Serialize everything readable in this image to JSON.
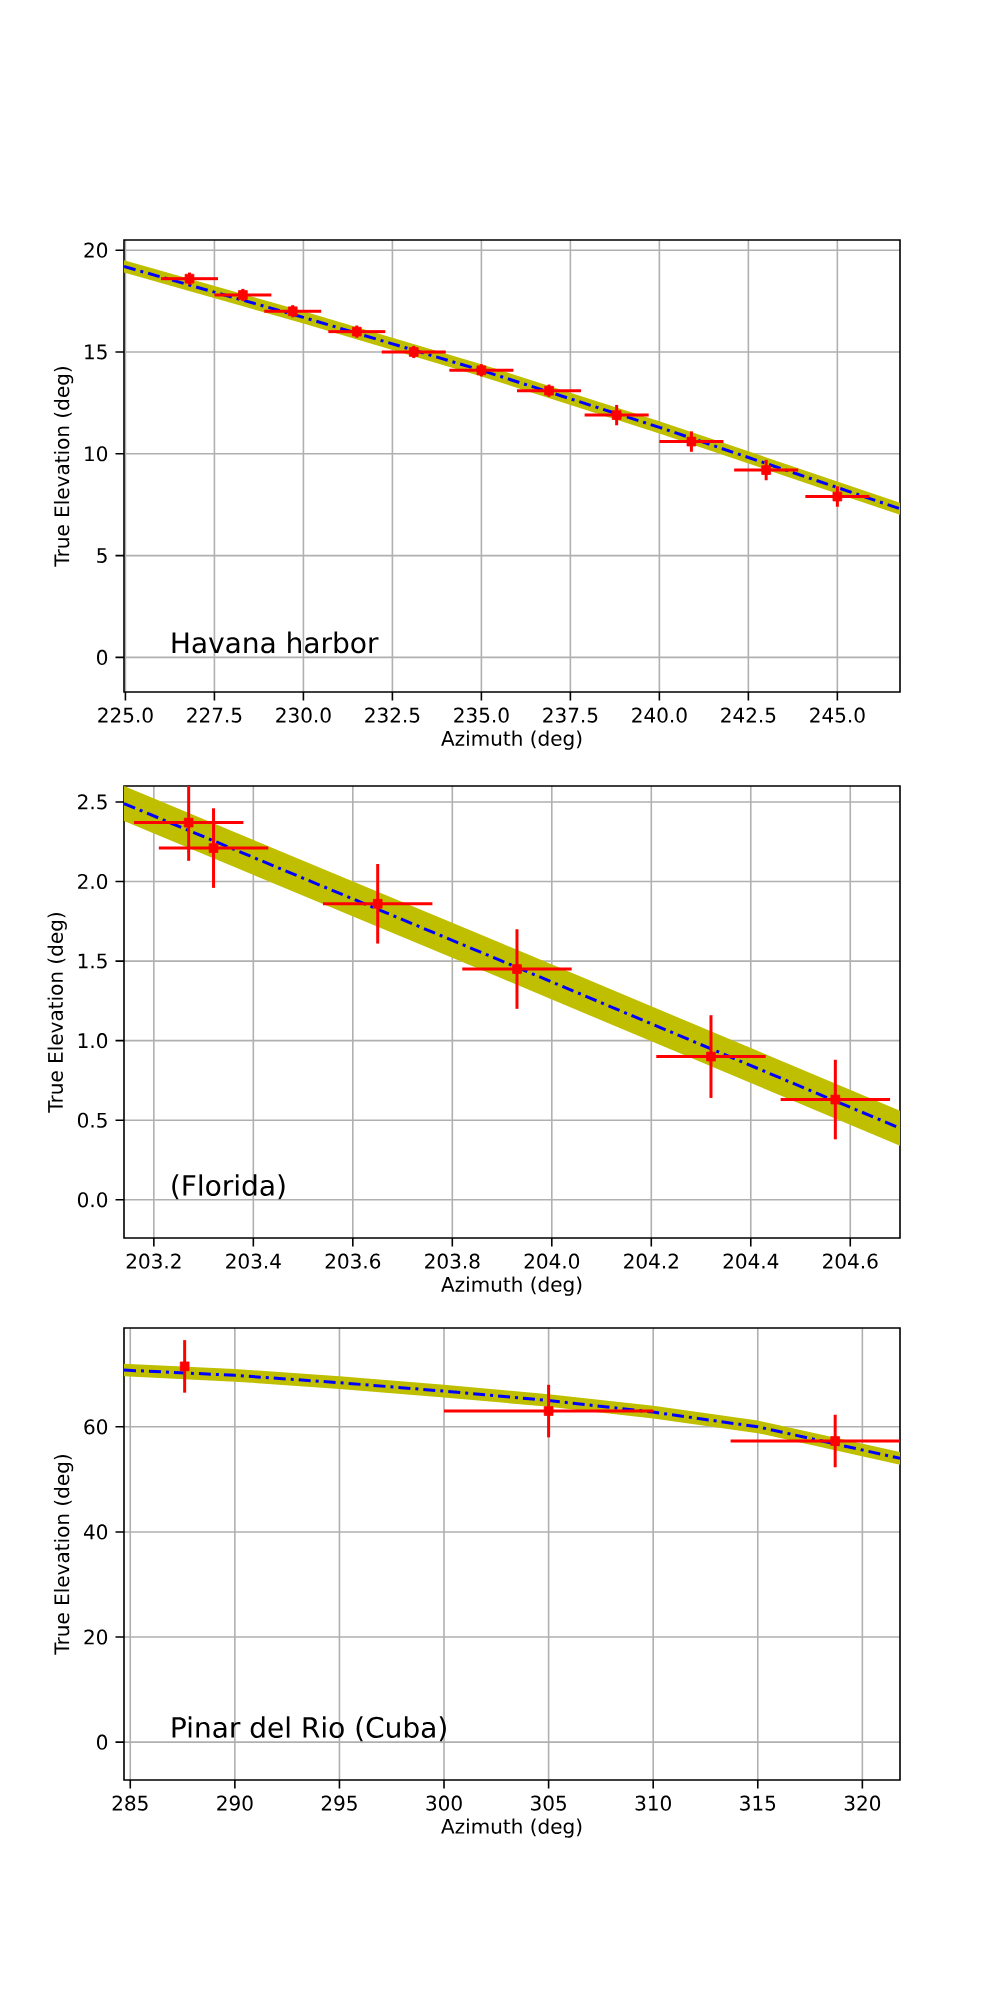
{
  "chart_data": [
    {
      "type": "scatter",
      "xlabel": "Azimuth (deg)",
      "ylabel": "True Elevation (deg)",
      "xlim": [
        224.96,
        246.76
      ],
      "ylim": [
        -1.7,
        20.5
      ],
      "xticks": [
        {
          "value": 225,
          "label": "225.0"
        },
        227.5,
        {
          "value": 230,
          "label": "230.0"
        },
        232.5,
        {
          "value": 235,
          "label": "235.0"
        },
        237.5,
        {
          "value": 240,
          "label": "240.0"
        },
        242.5,
        {
          "value": 245,
          "label": "245.0"
        }
      ],
      "yticks": [
        0,
        5,
        10,
        15,
        20
      ],
      "grid": true,
      "annotations": [
        "Havana harbor"
      ],
      "series": [
        {
          "type": "line",
          "color": "#0000ff",
          "line_style": "dashed",
          "x": [
            224.96,
            230,
            235,
            240,
            246.76
          ],
          "values": [
            19.2,
            16.7,
            14.1,
            11.3,
            7.3
          ],
          "lower": [
            18.9,
            16.4,
            13.8,
            11.0,
            7.0
          ],
          "upper": [
            19.5,
            17.0,
            14.4,
            11.6,
            7.6
          ]
        },
        {
          "marker": "square",
          "color": "#ff0000",
          "x": [
            226.8,
            228.3,
            229.7,
            231.5,
            233.1,
            235.0,
            236.9,
            238.8,
            240.9,
            243.0,
            245.0
          ],
          "values": [
            18.6,
            17.8,
            17.0,
            16.0,
            15.0,
            14.1,
            13.1,
            11.9,
            10.6,
            9.2,
            7.9
          ],
          "errors": [
            0.3,
            0.3,
            0.3,
            0.3,
            0.3,
            0.3,
            0.3,
            0.5,
            0.5,
            0.5,
            0.5
          ],
          "xerrors": [
            0.8,
            0.8,
            0.8,
            0.8,
            0.9,
            0.9,
            0.9,
            0.9,
            0.9,
            0.9,
            0.9
          ]
        }
      ]
    },
    {
      "type": "scatter",
      "xlabel": "Azimuth (deg)",
      "ylabel": "True Elevation (deg)",
      "xlim": [
        203.14,
        204.7
      ],
      "ylim": [
        -0.24,
        2.6
      ],
      "xticks": [
        203.2,
        203.4,
        203.6,
        203.8,
        {
          "value": 204,
          "label": "204.0"
        },
        204.2,
        204.4,
        204.6
      ],
      "yticks": [
        {
          "value": 0,
          "label": "0.0"
        },
        0.5,
        {
          "value": 1,
          "label": "1.0"
        },
        1.5,
        {
          "value": 2,
          "label": "2.0"
        },
        2.5
      ],
      "grid": true,
      "annotations": [
        "(Florida)"
      ],
      "series": [
        {
          "type": "line",
          "color": "#0000ff",
          "line_style": "dashed",
          "x": [
            203.14,
            203.9,
            204.7
          ],
          "values": [
            2.49,
            1.5,
            0.45
          ],
          "lower": [
            2.38,
            1.39,
            0.34
          ],
          "upper": [
            2.6,
            1.61,
            0.56
          ]
        },
        {
          "marker": "square",
          "color": "#ff0000",
          "x": [
            203.27,
            203.32,
            203.65,
            203.93,
            204.32,
            204.57
          ],
          "values": [
            2.37,
            2.21,
            1.86,
            1.45,
            0.9,
            0.63
          ],
          "errors": [
            0.24,
            0.25,
            0.25,
            0.25,
            0.26,
            0.25
          ],
          "xerrors": [
            0.11,
            0.11,
            0.11,
            0.11,
            0.11,
            0.11
          ]
        }
      ]
    },
    {
      "type": "scatter",
      "xlabel": "Azimuth (deg)",
      "ylabel": "True Elevation (deg)",
      "xlim": [
        284.7,
        321.8
      ],
      "ylim": [
        -7.2,
        78.8
      ],
      "xticks": [
        285,
        290,
        295,
        300,
        305,
        310,
        315,
        320
      ],
      "yticks": [
        0,
        20,
        40,
        60
      ],
      "grid": true,
      "annotations": [
        "Pinar del Rio (Cuba)"
      ],
      "series": [
        {
          "type": "line",
          "color": "#0000ff",
          "line_style": "dashed",
          "x": [
            284.7,
            290,
            295,
            300,
            305,
            310,
            315,
            321.8
          ],
          "values": [
            70.8,
            69.8,
            68.4,
            66.8,
            65.0,
            62.8,
            60.0,
            54.0
          ],
          "lower": [
            69.6,
            68.6,
            67.2,
            65.6,
            63.8,
            61.6,
            58.8,
            52.8
          ],
          "upper": [
            72.0,
            71.0,
            69.6,
            68.0,
            66.2,
            64.0,
            61.2,
            55.2
          ]
        },
        {
          "marker": "square",
          "color": "#ff0000",
          "x": [
            287.6,
            305.0,
            318.7
          ],
          "values": [
            71.5,
            63.0,
            57.3
          ],
          "errors": [
            5,
            5,
            5
          ],
          "xerrors": [
            null,
            5,
            5
          ]
        }
      ]
    }
  ]
}
